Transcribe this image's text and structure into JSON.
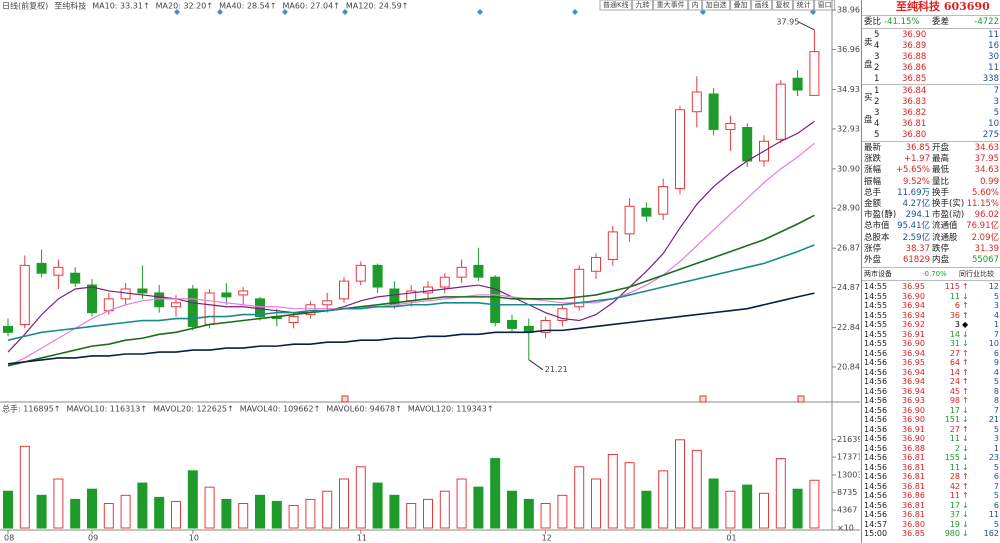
{
  "toolbar": [
    "普通K线",
    "九转",
    "重大事件",
    "内",
    "加自选",
    "叠加",
    "画线",
    "复权",
    "统计",
    "窗口"
  ],
  "chart_data": {
    "type": "candlestick",
    "legend_prefix": [
      "日线(前复权)",
      "至纯科技"
    ],
    "categories": [
      "08",
      null,
      null,
      null,
      null,
      "09",
      null,
      null,
      null,
      null,
      null,
      "10",
      null,
      null,
      null,
      null,
      null,
      null,
      null,
      null,
      null,
      "11",
      null,
      null,
      null,
      null,
      null,
      null,
      null,
      null,
      null,
      null,
      "12",
      null,
      null,
      null,
      null,
      null,
      null,
      null,
      null,
      null,
      null,
      "01",
      null,
      null,
      null,
      null,
      null
    ],
    "open": [
      22.9,
      23.0,
      26.1,
      25.5,
      25.6,
      25.0,
      23.7,
      24.3,
      24.8,
      24.6,
      23.9,
      24.8,
      23.0,
      24.6,
      24.5,
      24.3,
      23.4,
      23.1,
      23.5,
      24.0,
      24.3,
      25.2,
      26.0,
      24.8,
      24.2,
      24.6,
      24.9,
      25.4,
      26.0,
      25.4,
      23.2,
      22.9,
      22.6,
      23.2,
      23.9,
      25.7,
      26.3,
      27.6,
      28.9,
      28.6,
      29.9,
      33.8,
      34.7,
      32.9,
      33.0,
      31.3,
      32.4,
      35.5,
      34.63
    ],
    "high": [
      23.3,
      26.5,
      26.8,
      26.3,
      25.9,
      25.3,
      24.6,
      25.1,
      26.0,
      25.0,
      24.5,
      25.0,
      24.8,
      25.1,
      24.9,
      24.4,
      23.8,
      23.6,
      24.2,
      24.6,
      25.4,
      26.2,
      26.1,
      25.2,
      25.0,
      25.2,
      25.6,
      26.3,
      26.9,
      25.5,
      23.5,
      23.3,
      23.4,
      24.0,
      26.0,
      26.6,
      28.0,
      29.4,
      29.2,
      30.4,
      34.1,
      35.6,
      35.0,
      33.6,
      33.2,
      32.6,
      35.4,
      35.9,
      37.95
    ],
    "low": [
      22.4,
      22.8,
      25.4,
      24.8,
      24.9,
      23.4,
      23.5,
      24.0,
      24.3,
      23.6,
      23.4,
      22.7,
      22.8,
      24.0,
      24.0,
      23.2,
      22.9,
      22.8,
      23.3,
      23.6,
      24.1,
      25.0,
      24.6,
      23.8,
      23.9,
      24.3,
      24.6,
      25.1,
      25.2,
      22.9,
      22.6,
      21.21,
      22.3,
      22.9,
      23.7,
      25.3,
      26.0,
      27.2,
      28.2,
      28.3,
      29.6,
      33.0,
      32.6,
      31.8,
      31.0,
      31.0,
      32.2,
      34.6,
      34.63
    ],
    "close": [
      22.6,
      26.0,
      25.6,
      25.9,
      25.1,
      23.6,
      24.3,
      24.8,
      24.6,
      23.9,
      24.1,
      22.9,
      24.6,
      24.4,
      24.7,
      23.4,
      23.3,
      23.4,
      24.0,
      24.2,
      25.2,
      26.0,
      24.9,
      24.0,
      24.7,
      24.9,
      25.4,
      25.9,
      25.4,
      23.1,
      22.8,
      22.6,
      23.2,
      23.8,
      25.8,
      26.4,
      27.7,
      29.0,
      28.5,
      30.0,
      33.9,
      34.8,
      32.9,
      33.2,
      31.3,
      32.3,
      35.2,
      34.9,
      36.85
    ],
    "up_color": "#e8393d",
    "down_color": "#1e9a2a",
    "series": [
      {
        "name": "MA10: 33.31↑",
        "color": "#7b1f7b",
        "values": [
          21.6,
          22.5,
          23.5,
          24.3,
          24.8,
          24.9,
          24.7,
          24.6,
          24.5,
          24.4,
          24.3,
          24.1,
          24.0,
          23.9,
          23.9,
          23.8,
          23.7,
          23.6,
          23.6,
          23.7,
          23.9,
          24.2,
          24.4,
          24.5,
          24.6,
          24.7,
          24.8,
          24.9,
          25.0,
          24.8,
          24.4,
          24.0,
          23.6,
          23.3,
          23.2,
          23.5,
          24.1,
          24.9,
          25.7,
          26.6,
          27.9,
          29.1,
          30.0,
          30.7,
          31.3,
          31.8,
          32.3,
          32.7,
          33.31
        ]
      },
      {
        "name": "MA20: 32.20↑",
        "color": "#ea7be2",
        "values": [
          20.9,
          21.3,
          21.8,
          22.3,
          22.8,
          23.3,
          23.7,
          24.0,
          24.2,
          24.3,
          24.3,
          24.3,
          24.2,
          24.1,
          24.0,
          23.9,
          23.9,
          23.8,
          23.8,
          23.8,
          23.8,
          23.9,
          23.9,
          24.0,
          24.1,
          24.2,
          24.3,
          24.4,
          24.5,
          24.5,
          24.4,
          24.3,
          24.2,
          24.1,
          24.1,
          24.1,
          24.3,
          24.6,
          25.0,
          25.5,
          26.2,
          27.0,
          27.8,
          28.6,
          29.4,
          30.2,
          30.9,
          31.5,
          32.2
        ]
      },
      {
        "name": "MA40: 28.54↑",
        "color": "#1a6e1a",
        "values": [
          20.9,
          21.1,
          21.3,
          21.5,
          21.7,
          21.9,
          22.0,
          22.2,
          22.3,
          22.5,
          22.6,
          22.8,
          23.0,
          23.1,
          23.2,
          23.3,
          23.4,
          23.5,
          23.6,
          23.7,
          23.8,
          23.9,
          24.0,
          24.1,
          24.2,
          24.3,
          24.4,
          24.4,
          24.4,
          24.4,
          24.3,
          24.3,
          24.3,
          24.3,
          24.4,
          24.5,
          24.7,
          24.9,
          25.2,
          25.5,
          25.8,
          26.1,
          26.4,
          26.7,
          27.0,
          27.3,
          27.7,
          28.1,
          28.54
        ]
      },
      {
        "name": "MA60: 27.04↑",
        "color": "#1a8a8a",
        "values": [
          22.2,
          22.4,
          22.6,
          22.7,
          22.8,
          22.9,
          23.0,
          23.1,
          23.2,
          23.2,
          23.3,
          23.3,
          23.4,
          23.4,
          23.5,
          23.5,
          23.6,
          23.6,
          23.7,
          23.7,
          23.8,
          23.8,
          23.9,
          23.9,
          24.0,
          24.0,
          24.1,
          24.1,
          24.1,
          24.0,
          24.0,
          24.0,
          24.0,
          24.0,
          24.1,
          24.2,
          24.3,
          24.5,
          24.7,
          24.9,
          25.1,
          25.3,
          25.5,
          25.7,
          25.9,
          26.1,
          26.4,
          26.7,
          27.04
        ]
      },
      {
        "name": "MA120: 24.59↑",
        "color": "#0a1f40",
        "values": [
          21.0,
          21.1,
          21.2,
          21.3,
          21.3,
          21.4,
          21.4,
          21.5,
          21.5,
          21.6,
          21.6,
          21.7,
          21.7,
          21.8,
          21.8,
          21.9,
          21.9,
          22.0,
          22.0,
          22.1,
          22.1,
          22.2,
          22.2,
          22.3,
          22.3,
          22.4,
          22.4,
          22.5,
          22.5,
          22.6,
          22.6,
          22.6,
          22.7,
          22.7,
          22.8,
          22.9,
          23.0,
          23.1,
          23.2,
          23.3,
          23.4,
          23.5,
          23.6,
          23.7,
          23.8,
          24.0,
          24.2,
          24.4,
          24.59
        ]
      }
    ],
    "ylim": [
      20.18,
      39.32
    ],
    "yticks": [
      20.84,
      22.84,
      24.87,
      26.87,
      {
        "value": 28.9,
        "label": "28.90"
      },
      {
        "value": 30.9,
        "label": "30.90"
      },
      32.93,
      34.93,
      36.96,
      38.96
    ],
    "grid": false,
    "volume": {
      "values": [
        9000,
        20000,
        8000,
        12000,
        7000,
        9500,
        6000,
        8000,
        11000,
        7500,
        6500,
        14000,
        10000,
        7000,
        6000,
        8000,
        6500,
        5500,
        7000,
        9000,
        12000,
        15000,
        11000,
        8000,
        6000,
        7000,
        9000,
        12000,
        10000,
        17000,
        9000,
        7000,
        6000,
        8000,
        15000,
        12000,
        18000,
        16000,
        9000,
        14000,
        21600,
        19000,
        12000,
        9000,
        10500,
        8500,
        17000,
        9500,
        11690
      ],
      "ylim": [
        0,
        24000
      ],
      "yticks": [
        4367,
        8735,
        13003,
        17371,
        21639
      ],
      "unit": "×10",
      "legend": [
        {
          "name": "总手: 116895↑",
          "color": "#d33"
        },
        {
          "name": "MAVOL10: 116313↑",
          "color": "#444"
        },
        {
          "name": "MAVOL20: 122625↑",
          "color": "#2a6fc9"
        },
        {
          "name": "MAVOL40: 109662↑",
          "color": "#111"
        },
        {
          "name": "MAVOL60: 94678↑",
          "color": "#1a8a8a"
        },
        {
          "name": "MAVOL120: 119343↑",
          "color": "#1a6e1a"
        }
      ]
    }
  },
  "quote_panel": {
    "title": "至纯科技 603690",
    "order_ratio": [
      "委比",
      "-41.15%",
      "委差",
      "-4722"
    ],
    "sell_label": [
      "卖",
      "盘"
    ],
    "buy_label": [
      "买",
      "盘"
    ],
    "asks": [
      [
        "5",
        "36.90",
        "11"
      ],
      [
        "4",
        "36.89",
        "16"
      ],
      [
        "3",
        "36.88",
        "30"
      ],
      [
        "2",
        "36.86",
        "11"
      ],
      [
        "1",
        "36.85",
        "338"
      ]
    ],
    "bids": [
      [
        "1",
        "36.84",
        "7"
      ],
      [
        "2",
        "36.83",
        "3"
      ],
      [
        "3",
        "36.82",
        "5"
      ],
      [
        "4",
        "36.81",
        "10"
      ],
      [
        "5",
        "36.80",
        "275"
      ]
    ],
    "stats": [
      [
        "最新",
        "36.85",
        "开盘",
        "34.63"
      ],
      [
        "涨跌",
        "+1.97",
        "最高",
        "37.95"
      ],
      [
        "涨幅",
        "+5.65%",
        "最低",
        "34.63"
      ],
      [
        "振幅",
        "9.52%",
        "量比",
        "0.99"
      ],
      [
        "总手",
        "11.69万",
        "换手",
        "5.60%"
      ],
      [
        "金额",
        "4.27亿",
        "换手(实)",
        "11.15%"
      ],
      [
        "市盈(静)",
        "294.1",
        "市盈(动)",
        "96.02"
      ],
      [
        "总市值",
        "95.41亿",
        "流通值",
        "76.91亿"
      ],
      [
        "总股本",
        "2.59亿",
        "流通股",
        "2.09亿"
      ],
      [
        "涨停",
        "38.37",
        "跌停",
        "31.39"
      ],
      [
        "外盘",
        "61829",
        "内盘",
        "55067"
      ]
    ]
  },
  "trades": {
    "header": [
      "两市设备",
      "-0.70%",
      "同行业比较"
    ],
    "rows": [
      [
        "14:55",
        "36.95",
        "115",
        "↑",
        "12"
      ],
      [
        "14:55",
        "36.90",
        "11",
        "↓",
        "5"
      ],
      [
        "14:55",
        "36.94",
        "6",
        "↑",
        "3"
      ],
      [
        "14:55",
        "36.94",
        "36",
        "↑",
        "4"
      ],
      [
        "14:55",
        "36.92",
        "3",
        "◆",
        "1"
      ],
      [
        "14:55",
        "36.91",
        "14",
        "↓",
        "7"
      ],
      [
        "14:55",
        "36.90",
        "31",
        "↓",
        "10"
      ],
      [
        "14:56",
        "36.94",
        "27",
        "↑",
        "6"
      ],
      [
        "14:56",
        "36.95",
        "64",
        "↑",
        "9"
      ],
      [
        "14:56",
        "36.94",
        "14",
        "↑",
        "4"
      ],
      [
        "14:56",
        "36.94",
        "24",
        "↑",
        "5"
      ],
      [
        "14:56",
        "36.94",
        "45",
        "↑",
        "8"
      ],
      [
        "14:56",
        "36.93",
        "98",
        "↑",
        "8"
      ],
      [
        "14:56",
        "36.90",
        "17",
        "↓",
        "7"
      ],
      [
        "14:56",
        "36.90",
        "151",
        "↓",
        "21"
      ],
      [
        "14:56",
        "36.91",
        "27",
        "↑",
        "5"
      ],
      [
        "14:56",
        "36.90",
        "11",
        "↓",
        "3"
      ],
      [
        "14:56",
        "36.88",
        "2",
        "↓",
        "1"
      ],
      [
        "14:56",
        "36.81",
        "155",
        "↓",
        "23"
      ],
      [
        "14:56",
        "36.81",
        "11",
        "↓",
        "5"
      ],
      [
        "14:56",
        "36.81",
        "28",
        "↑",
        "6"
      ],
      [
        "14:56",
        "36.81",
        "42",
        "↑",
        "7"
      ],
      [
        "14:56",
        "36.86",
        "11",
        "↑",
        "5"
      ],
      [
        "14:56",
        "36.81",
        "17",
        "↓",
        "6"
      ],
      [
        "14:56",
        "36.81",
        "37",
        "↓",
        "11"
      ],
      [
        "14:57",
        "36.80",
        "19",
        "↓",
        "5"
      ],
      [
        "15:00",
        "36.85",
        "980",
        "↓",
        "162"
      ]
    ]
  }
}
